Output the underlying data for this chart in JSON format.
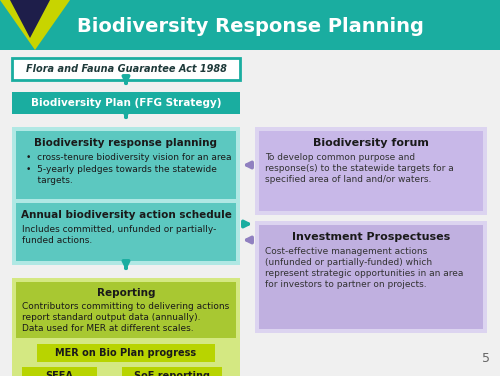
{
  "title": "Biodiversity Response Planning",
  "title_color": "#ffffff",
  "header_bg": "#1aada0",
  "slide_bg": "#f0f0f0",
  "logo_yellow": "#c8d400",
  "logo_dark": "#1e1e4a",
  "box1_text": "Flora and Fauna Guarantee Act 1988",
  "box1_bg": "#ffffff",
  "box1_border": "#1aada0",
  "box2_text": "Biodiversity Plan (FFG Strategy)",
  "box2_bg": "#1aada0",
  "box2_text_color": "#ffffff",
  "box3_title": "Biodiversity response planning",
  "box3_bullet1": "cross-tenure biodiversity vision for an area",
  "box3_bullet2": "5-yearly pledges towards the statewide",
  "box3_bullet2b": "    targets.",
  "box3_bg": "#5cc8c0",
  "box4_title": "Annual biodiversity action schedule",
  "box4_body1": "Includes committed, unfunded or partially-",
  "box4_body2": "funded actions.",
  "box4_bg": "#5cc8c0",
  "box34_outer_bg": "#b0e8e4",
  "box5_title": "Reporting",
  "box5_body1": "Contributors committing to delivering actions",
  "box5_body2": "report standard output data (annually).",
  "box5_body3": "Data used for MER at different scales.",
  "box5_bg": "#a8c832",
  "box5_outer_bg": "#d4e882",
  "box6_text": "MER on Bio Plan progress",
  "box6_bg": "#b8d400",
  "box7_text": "SEEA",
  "box7_bg": "#b8d400",
  "box8_text": "SoE reporting",
  "box8_bg": "#b8d400",
  "right1_title": "Biodiversity forum",
  "right1_body1": "To develop common purpose and",
  "right1_body2": "response(s) to the statewide targets for a",
  "right1_body3": "specified area of land and/or waters.",
  "right1_bg_outer": "#dcd4f0",
  "right1_bg_inner": "#c8b8e8",
  "right2_title": "Investment Prospectuses",
  "right2_body1": "Cost-effective management actions",
  "right2_body2": "(unfunded or partially-funded) which",
  "right2_body3": "represent strategic opportunities in an area",
  "right2_body4": "for investors to partner on projects.",
  "right2_bg_outer": "#dcd4f0",
  "right2_bg_inner": "#c0b0e0",
  "arrow_teal": "#1aada0",
  "arrow_purple": "#9080c0",
  "text_dark": "#333333",
  "page_num": "5"
}
